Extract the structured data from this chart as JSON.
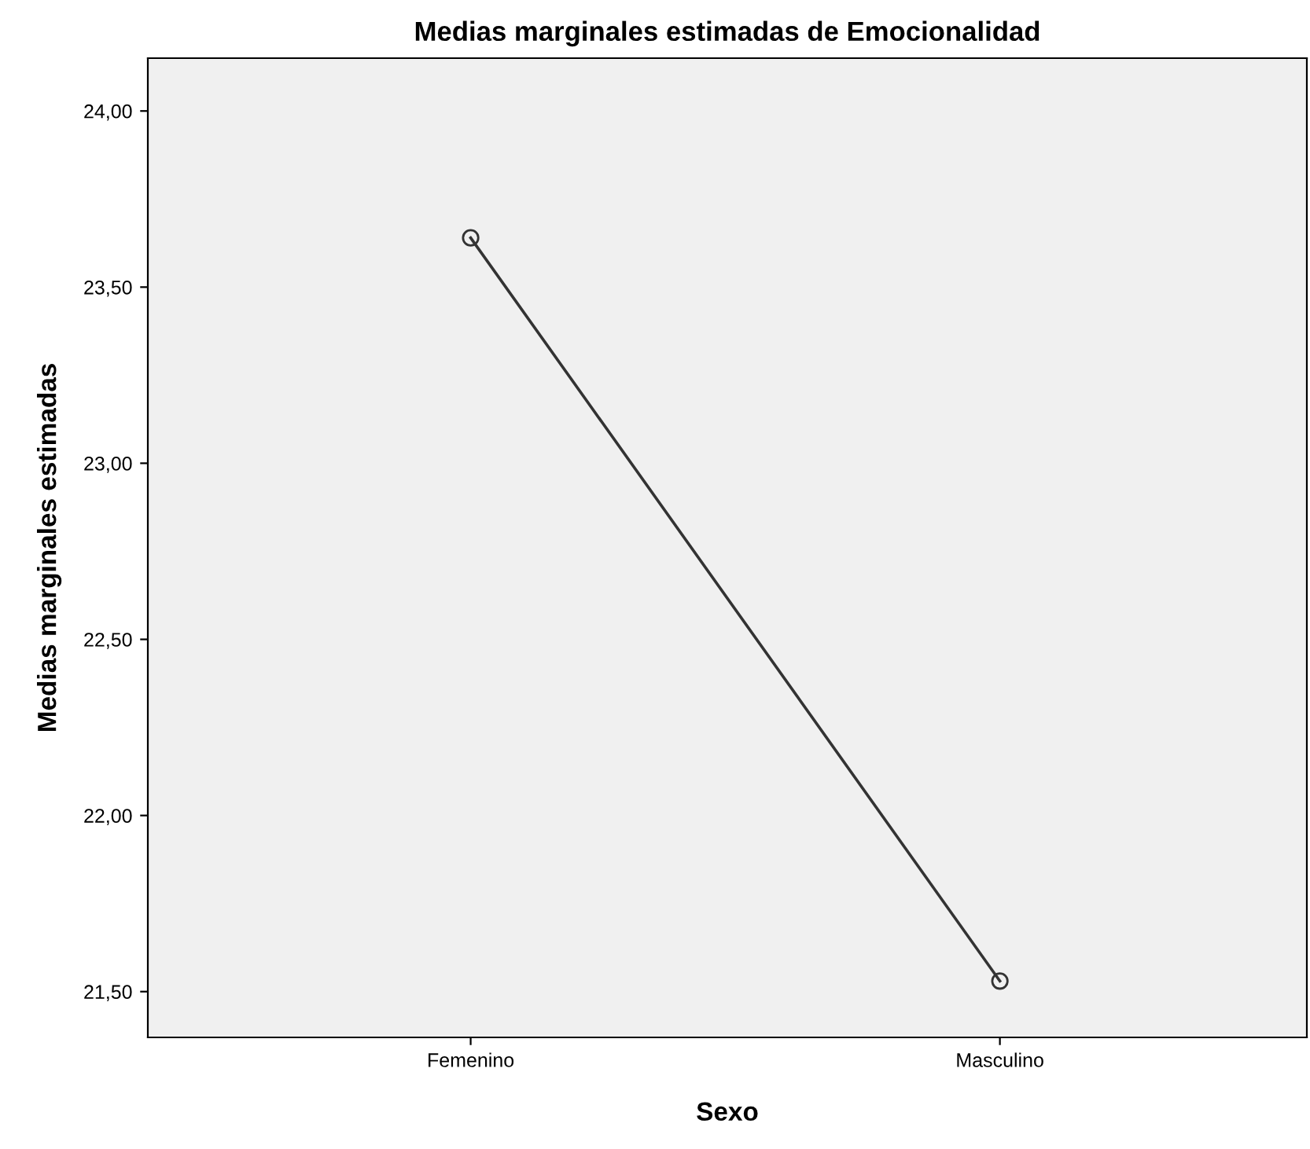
{
  "chart_data": {
    "type": "line",
    "title": "Medias marginales estimadas de Emocionalidad",
    "xlabel": "Sexo",
    "ylabel": "Medias marginales estimadas",
    "categories": [
      "Femenino",
      "Masculino"
    ],
    "series": [
      {
        "color": "#333333",
        "values": [
          23.64,
          21.53
        ]
      }
    ],
    "ylim": [
      21.37,
      24.15
    ],
    "yticks": [
      {
        "value": 21.5,
        "label": "21,50"
      },
      {
        "value": 22.0,
        "label": "22,00"
      },
      {
        "value": 22.5,
        "label": "22,50"
      },
      {
        "value": 23.0,
        "label": "23,00"
      },
      {
        "value": 23.5,
        "label": "23,50"
      },
      {
        "value": 24.0,
        "label": "24,00"
      }
    ],
    "marker": "circle",
    "grid": false
  }
}
